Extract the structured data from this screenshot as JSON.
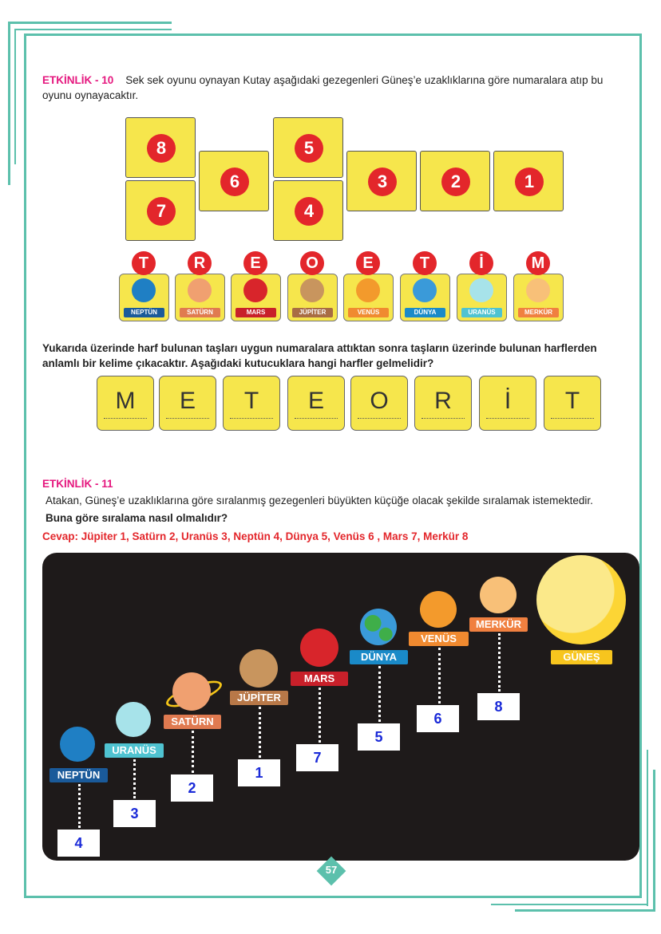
{
  "activity10": {
    "label": "ETKİNLİK - 10",
    "text_line1": "Sek sek oyunu oynayan Kutay aşağıdaki gezegenleri Güneş’e uzaklıklarına göre numaralara atıp bu",
    "text_line2": "oyunu oynayacaktır.",
    "hopscotch": [
      "8",
      "7",
      "6",
      "5",
      "4",
      "3",
      "2",
      "1"
    ],
    "cards": [
      {
        "letter": "T",
        "planet": "NEPTÜN",
        "color": "#1f7fc4",
        "label_color": "#1a5a9a"
      },
      {
        "letter": "R",
        "planet": "SATÜRN",
        "color": "#f0a070",
        "label_color": "#e07a50"
      },
      {
        "letter": "E",
        "planet": "MARS",
        "color": "#d8252b",
        "label_color": "#c8202a"
      },
      {
        "letter": "O",
        "planet": "JÜPİTER",
        "color": "#c8955e",
        "label_color": "#a86c44"
      },
      {
        "letter": "E",
        "planet": "VENÜS",
        "color": "#f39a2c",
        "label_color": "#f08a30"
      },
      {
        "letter": "T",
        "planet": "DÜNYA",
        "color": "#3a9ad9",
        "label_color": "#1a8ac8"
      },
      {
        "letter": "İ",
        "planet": "URANÜS",
        "color": "#a7e3ea",
        "label_color": "#4fc3d1"
      },
      {
        "letter": "M",
        "planet": "MERKÜR",
        "color": "#f8c078",
        "label_color": "#f08040"
      }
    ],
    "question_line1": "Yukarıda üzerinde harf bulunan taşları uygun numaralara attıktan sonra taşların üzerinde bulunan harflerden",
    "question_line2": "anlamlı bir kelime çıkacaktır. Aşağıdaki kutucuklara hangi harfler gelmelidir?",
    "answer_letters": [
      "M",
      "E",
      "T",
      "E",
      "O",
      "R",
      "İ",
      "T"
    ]
  },
  "activity11": {
    "label": "ETKİNLİK - 11",
    "text": "Atakan, Güneş’e uzaklıklarına göre sıralanmış gezegenleri büyükten küçüğe olacak şekilde sıralamak istemektedir.",
    "question": "Buna göre sıralama nasıl olmalıdır?",
    "answer": "Cevap: Jüpiter 1, Satürn 2, Uranüs 3, Neptün 4, Dünya 5, Venüs 6 , Mars 7, Merkür 8",
    "planets": [
      {
        "name": "NEPTÜN",
        "number": "4",
        "color": "#1f7fc4",
        "label_color": "#1a5a9a"
      },
      {
        "name": "URANÜS",
        "number": "3",
        "color": "#a7e3ea",
        "label_color": "#4fc3d1"
      },
      {
        "name": "SATÜRN",
        "number": "2",
        "color": "#f0a070",
        "label_color": "#e07a50"
      },
      {
        "name": "JÜPİTER",
        "number": "1",
        "color": "#c8955e",
        "label_color": "#b87848"
      },
      {
        "name": "MARS",
        "number": "7",
        "color": "#d8252b",
        "label_color": "#c8202a"
      },
      {
        "name": "DÜNYA",
        "number": "5",
        "color": "#3a9ad9",
        "label_color": "#1a8ac8"
      },
      {
        "name": "VENÜS",
        "number": "6",
        "color": "#f39a2c",
        "label_color": "#f08a30"
      },
      {
        "name": "MERKÜR",
        "number": "8",
        "color": "#f8c078",
        "label_color": "#f08040"
      }
    ],
    "sun": {
      "name": "GÜNEŞ",
      "color": "#fcd535",
      "label_color": "#f7c51e"
    }
  },
  "page_number": "57",
  "colors": {
    "frame": "#5cc0ac",
    "heading": "#e5177e",
    "answer": "#e3262b",
    "tile": "#f6e64c"
  }
}
